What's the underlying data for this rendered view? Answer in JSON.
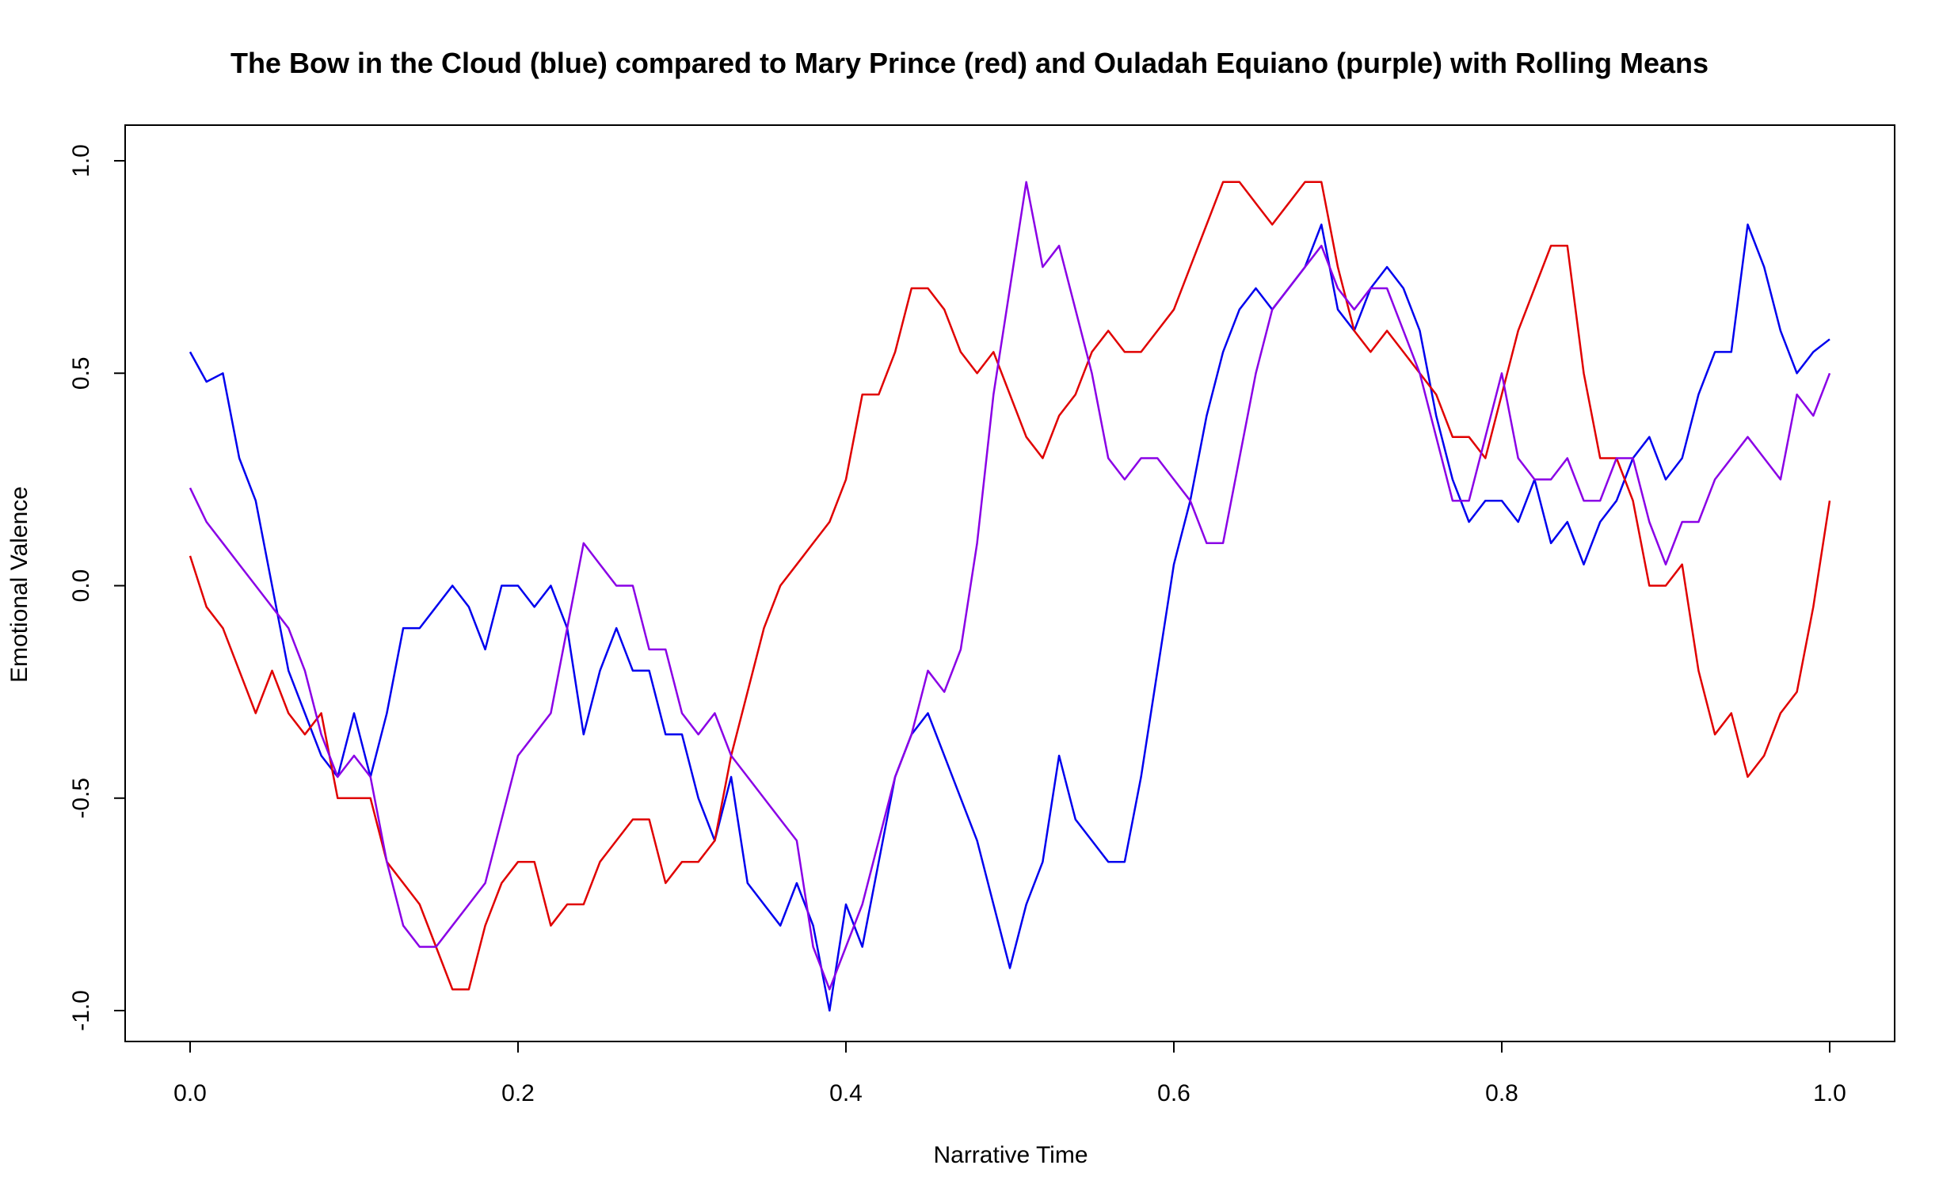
{
  "chart_data": {
    "type": "line",
    "title": "The Bow in the Cloud (blue) compared to Mary Prince (red) and Ouladah Equiano (purple) with Rolling Means",
    "xlabel": "Narrative Time",
    "ylabel": "Emotional Valence",
    "xlim": [
      0.0,
      1.0
    ],
    "ylim": [
      -1.0,
      1.0
    ],
    "x_ticks": [
      "0.0",
      "0.2",
      "0.4",
      "0.6",
      "0.8",
      "1.0"
    ],
    "y_ticks": [
      "-1.0",
      "-0.5",
      "0.0",
      "0.5",
      "1.0"
    ],
    "grid": false,
    "legend": "none",
    "series": [
      {
        "color": "#0000ee",
        "x": [
          0.0,
          0.01,
          0.02,
          0.03,
          0.04,
          0.05,
          0.06,
          0.07,
          0.08,
          0.09,
          0.1,
          0.11,
          0.12,
          0.13,
          0.14,
          0.15,
          0.16,
          0.17,
          0.18,
          0.19,
          0.2,
          0.21,
          0.22,
          0.23,
          0.24,
          0.25,
          0.26,
          0.27,
          0.28,
          0.29,
          0.3,
          0.31,
          0.32,
          0.33,
          0.34,
          0.35,
          0.36,
          0.37,
          0.38,
          0.39,
          0.4,
          0.41,
          0.42,
          0.43,
          0.44,
          0.45,
          0.46,
          0.47,
          0.48,
          0.49,
          0.5,
          0.51,
          0.52,
          0.53,
          0.54,
          0.55,
          0.56,
          0.57,
          0.58,
          0.59,
          0.6,
          0.61,
          0.62,
          0.63,
          0.64,
          0.65,
          0.66,
          0.67,
          0.68,
          0.69,
          0.7,
          0.71,
          0.72,
          0.73,
          0.74,
          0.75,
          0.76,
          0.77,
          0.78,
          0.79,
          0.8,
          0.81,
          0.82,
          0.83,
          0.84,
          0.85,
          0.86,
          0.87,
          0.88,
          0.89,
          0.9,
          0.91,
          0.92,
          0.93,
          0.94,
          0.95,
          0.96,
          0.97,
          0.98,
          0.99,
          1.0
        ],
        "y": [
          0.55,
          0.48,
          0.5,
          0.3,
          0.2,
          0.0,
          -0.2,
          -0.3,
          -0.4,
          -0.45,
          -0.3,
          -0.45,
          -0.3,
          -0.1,
          -0.1,
          -0.05,
          0.0,
          -0.05,
          -0.15,
          0.0,
          0.0,
          -0.05,
          0.0,
          -0.1,
          -0.35,
          -0.2,
          -0.1,
          -0.2,
          -0.2,
          -0.35,
          -0.35,
          -0.5,
          -0.6,
          -0.45,
          -0.7,
          -0.75,
          -0.8,
          -0.7,
          -0.8,
          -1.0,
          -0.75,
          -0.85,
          -0.65,
          -0.45,
          -0.35,
          -0.3,
          -0.4,
          -0.5,
          -0.6,
          -0.75,
          -0.9,
          -0.75,
          -0.65,
          -0.4,
          -0.55,
          -0.6,
          -0.65,
          -0.65,
          -0.45,
          -0.2,
          0.05,
          0.2,
          0.4,
          0.55,
          0.65,
          0.7,
          0.65,
          0.7,
          0.75,
          0.85,
          0.65,
          0.6,
          0.7,
          0.75,
          0.7,
          0.6,
          0.4,
          0.25,
          0.15,
          0.2,
          0.2,
          0.15,
          0.25,
          0.1,
          0.15,
          0.05,
          0.15,
          0.2,
          0.3,
          0.35,
          0.25,
          0.3,
          0.45,
          0.55,
          0.55,
          0.85,
          0.75,
          0.6,
          0.5,
          0.55,
          0.58
        ]
      },
      {
        "color": "#e00000",
        "x": [
          0.0,
          0.01,
          0.02,
          0.03,
          0.04,
          0.05,
          0.06,
          0.07,
          0.08,
          0.09,
          0.1,
          0.11,
          0.12,
          0.13,
          0.14,
          0.15,
          0.16,
          0.17,
          0.18,
          0.19,
          0.2,
          0.21,
          0.22,
          0.23,
          0.24,
          0.25,
          0.26,
          0.27,
          0.28,
          0.29,
          0.3,
          0.31,
          0.32,
          0.33,
          0.34,
          0.35,
          0.36,
          0.37,
          0.38,
          0.39,
          0.4,
          0.41,
          0.42,
          0.43,
          0.44,
          0.45,
          0.46,
          0.47,
          0.48,
          0.49,
          0.5,
          0.51,
          0.52,
          0.53,
          0.54,
          0.55,
          0.56,
          0.57,
          0.58,
          0.59,
          0.6,
          0.61,
          0.62,
          0.63,
          0.64,
          0.65,
          0.66,
          0.67,
          0.68,
          0.69,
          0.7,
          0.71,
          0.72,
          0.73,
          0.74,
          0.75,
          0.76,
          0.77,
          0.78,
          0.79,
          0.8,
          0.81,
          0.82,
          0.83,
          0.84,
          0.85,
          0.86,
          0.87,
          0.88,
          0.89,
          0.9,
          0.91,
          0.92,
          0.93,
          0.94,
          0.95,
          0.96,
          0.97,
          0.98,
          0.99,
          1.0
        ],
        "y": [
          0.07,
          -0.05,
          -0.1,
          -0.2,
          -0.3,
          -0.2,
          -0.3,
          -0.35,
          -0.3,
          -0.5,
          -0.5,
          -0.5,
          -0.65,
          -0.7,
          -0.75,
          -0.85,
          -0.95,
          -0.95,
          -0.8,
          -0.7,
          -0.65,
          -0.65,
          -0.8,
          -0.75,
          -0.75,
          -0.65,
          -0.6,
          -0.55,
          -0.55,
          -0.7,
          -0.65,
          -0.65,
          -0.6,
          -0.4,
          -0.25,
          -0.1,
          0.0,
          0.05,
          0.1,
          0.15,
          0.25,
          0.45,
          0.45,
          0.55,
          0.7,
          0.7,
          0.65,
          0.55,
          0.5,
          0.55,
          0.45,
          0.35,
          0.3,
          0.4,
          0.45,
          0.55,
          0.6,
          0.55,
          0.55,
          0.6,
          0.65,
          0.75,
          0.85,
          0.95,
          0.95,
          0.9,
          0.85,
          0.9,
          0.95,
          0.95,
          0.75,
          0.6,
          0.55,
          0.6,
          0.55,
          0.5,
          0.45,
          0.35,
          0.35,
          0.3,
          0.45,
          0.6,
          0.7,
          0.8,
          0.8,
          0.5,
          0.3,
          0.3,
          0.2,
          0.0,
          0.0,
          0.05,
          -0.2,
          -0.35,
          -0.3,
          -0.45,
          -0.4,
          -0.3,
          -0.25,
          -0.05,
          0.2
        ]
      },
      {
        "color": "#8a00e6",
        "x": [
          0.0,
          0.01,
          0.02,
          0.03,
          0.04,
          0.05,
          0.06,
          0.07,
          0.08,
          0.09,
          0.1,
          0.11,
          0.12,
          0.13,
          0.14,
          0.15,
          0.16,
          0.17,
          0.18,
          0.19,
          0.2,
          0.21,
          0.22,
          0.23,
          0.24,
          0.25,
          0.26,
          0.27,
          0.28,
          0.29,
          0.3,
          0.31,
          0.32,
          0.33,
          0.34,
          0.35,
          0.36,
          0.37,
          0.38,
          0.39,
          0.4,
          0.41,
          0.42,
          0.43,
          0.44,
          0.45,
          0.46,
          0.47,
          0.48,
          0.49,
          0.5,
          0.51,
          0.52,
          0.53,
          0.54,
          0.55,
          0.56,
          0.57,
          0.58,
          0.59,
          0.6,
          0.61,
          0.62,
          0.63,
          0.64,
          0.65,
          0.66,
          0.67,
          0.68,
          0.69,
          0.7,
          0.71,
          0.72,
          0.73,
          0.74,
          0.75,
          0.76,
          0.77,
          0.78,
          0.79,
          0.8,
          0.81,
          0.82,
          0.83,
          0.84,
          0.85,
          0.86,
          0.87,
          0.88,
          0.89,
          0.9,
          0.91,
          0.92,
          0.93,
          0.94,
          0.95,
          0.96,
          0.97,
          0.98,
          0.99,
          1.0
        ],
        "y": [
          0.23,
          0.15,
          0.1,
          0.05,
          0.0,
          -0.05,
          -0.1,
          -0.2,
          -0.35,
          -0.45,
          -0.4,
          -0.45,
          -0.65,
          -0.8,
          -0.85,
          -0.85,
          -0.8,
          -0.75,
          -0.7,
          -0.55,
          -0.4,
          -0.35,
          -0.3,
          -0.1,
          0.1,
          0.05,
          0.0,
          0.0,
          -0.15,
          -0.15,
          -0.3,
          -0.35,
          -0.3,
          -0.4,
          -0.45,
          -0.5,
          -0.55,
          -0.6,
          -0.85,
          -0.95,
          -0.85,
          -0.75,
          -0.6,
          -0.45,
          -0.35,
          -0.2,
          -0.25,
          -0.15,
          0.1,
          0.45,
          0.7,
          0.95,
          0.75,
          0.8,
          0.65,
          0.5,
          0.3,
          0.25,
          0.3,
          0.3,
          0.25,
          0.2,
          0.1,
          0.1,
          0.3,
          0.5,
          0.65,
          0.7,
          0.75,
          0.8,
          0.7,
          0.65,
          0.7,
          0.7,
          0.6,
          0.5,
          0.35,
          0.2,
          0.2,
          0.35,
          0.5,
          0.3,
          0.25,
          0.25,
          0.3,
          0.2,
          0.2,
          0.3,
          0.3,
          0.15,
          0.05,
          0.15,
          0.15,
          0.25,
          0.3,
          0.35,
          0.3,
          0.25,
          0.45,
          0.4,
          0.5
        ]
      }
    ]
  }
}
